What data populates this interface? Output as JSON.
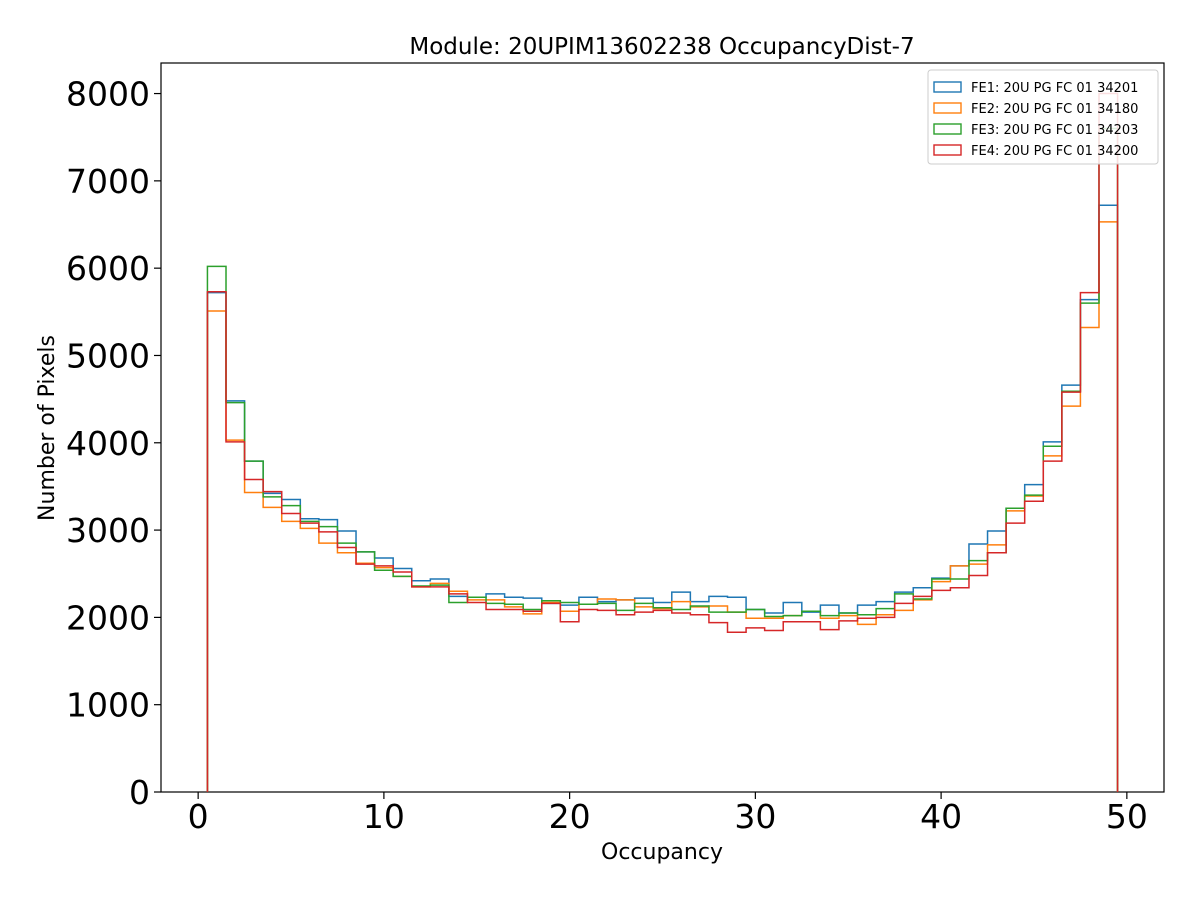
{
  "chart_data": {
    "type": "line",
    "style": "step-histogram",
    "title": "Module: 20UPIM13602238 OccupancyDist-7",
    "xlabel": "Occupancy",
    "ylabel": "Number of Pixels",
    "xlim": [
      -2,
      52
    ],
    "ylim": [
      0,
      8350
    ],
    "xticks": [
      0,
      10,
      20,
      30,
      40,
      50
    ],
    "yticks": [
      0,
      1000,
      2000,
      3000,
      4000,
      5000,
      6000,
      7000,
      8000
    ],
    "bin_edges": [
      0.5,
      49.5
    ],
    "bin_count": 49,
    "legend_position": "top-right",
    "grid": false,
    "series": [
      {
        "name": "FE1: 20U PG FC 01 34201",
        "color": "#1f77b4",
        "values": [
          5720,
          4480,
          3790,
          3420,
          3350,
          3130,
          3120,
          2990,
          2750,
          2680,
          2560,
          2420,
          2440,
          2240,
          2230,
          2270,
          2230,
          2220,
          2160,
          2140,
          2230,
          2180,
          2200,
          2220,
          2170,
          2290,
          2180,
          2240,
          2230,
          2090,
          2050,
          2170,
          2060,
          2140,
          2050,
          2140,
          2180,
          2290,
          2340,
          2450,
          2590,
          2840,
          2990,
          3250,
          3520,
          4010,
          4660,
          5640,
          6720
        ]
      },
      {
        "name": "FE2: 20U PG FC 01 34180",
        "color": "#ff7f0e",
        "values": [
          5510,
          4030,
          3430,
          3260,
          3100,
          3020,
          2850,
          2740,
          2620,
          2570,
          2470,
          2350,
          2390,
          2300,
          2200,
          2200,
          2120,
          2040,
          2170,
          2070,
          2150,
          2210,
          2200,
          2120,
          2100,
          2180,
          2120,
          2130,
          2060,
          1990,
          1990,
          2020,
          2070,
          1990,
          2020,
          1920,
          2030,
          2080,
          2200,
          2410,
          2590,
          2610,
          2830,
          3220,
          3390,
          3850,
          4420,
          5320,
          6530
        ]
      },
      {
        "name": "FE3: 20U PG FC 01 34203",
        "color": "#2ca02c",
        "values": [
          6020,
          4460,
          3790,
          3380,
          3280,
          3100,
          3040,
          2850,
          2750,
          2540,
          2470,
          2360,
          2370,
          2170,
          2230,
          2160,
          2150,
          2090,
          2190,
          2170,
          2150,
          2160,
          2080,
          2160,
          2110,
          2090,
          2130,
          2060,
          2060,
          2090,
          2010,
          2020,
          2070,
          2020,
          2050,
          2030,
          2100,
          2270,
          2210,
          2440,
          2440,
          2650,
          2740,
          3250,
          3400,
          3960,
          4590,
          5600,
          7600
        ]
      },
      {
        "name": "FE4: 20U PG FC 01 34200",
        "color": "#d62728",
        "values": [
          5730,
          4010,
          3580,
          3440,
          3190,
          3080,
          2980,
          2800,
          2610,
          2590,
          2520,
          2350,
          2350,
          2270,
          2170,
          2090,
          2090,
          2070,
          2160,
          1950,
          2090,
          2080,
          2030,
          2060,
          2080,
          2050,
          2030,
          1940,
          1830,
          1880,
          1850,
          1950,
          1950,
          1860,
          1960,
          1990,
          2000,
          2160,
          2240,
          2310,
          2340,
          2480,
          2740,
          3080,
          3330,
          3790,
          4580,
          5720,
          8000
        ]
      }
    ]
  }
}
